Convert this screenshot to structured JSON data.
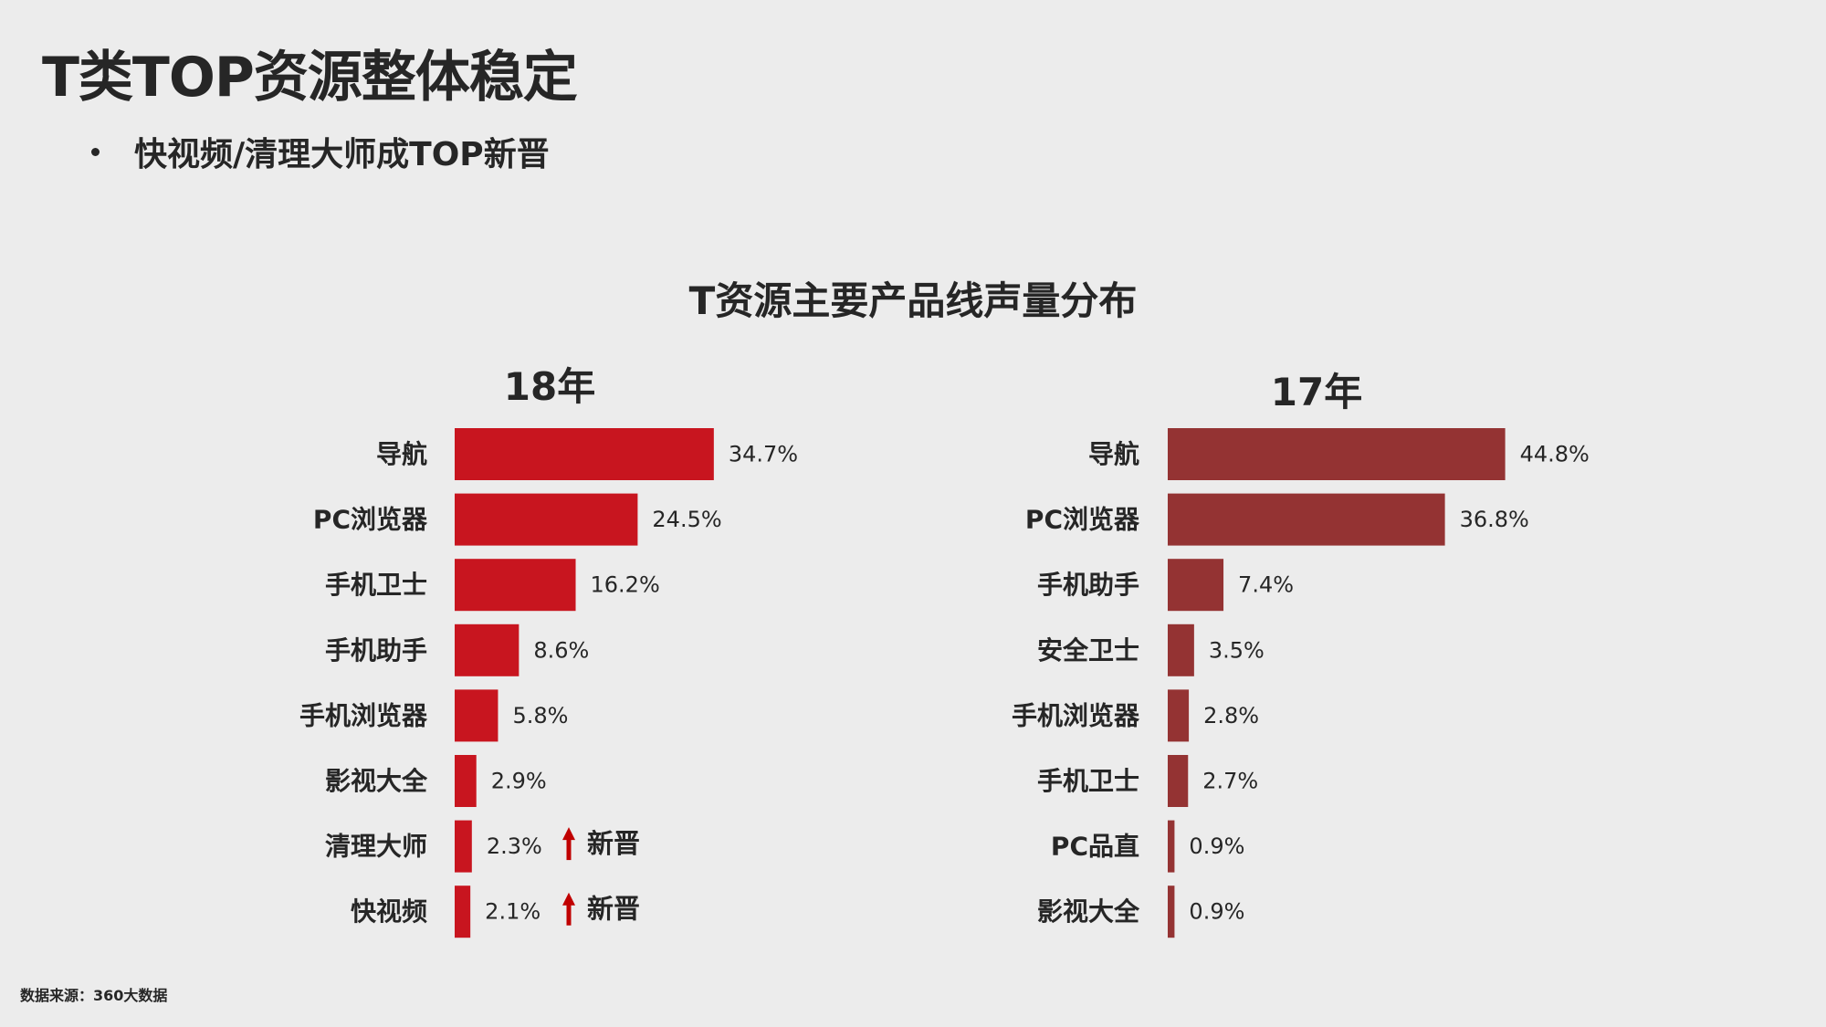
{
  "page": {
    "title": "T类TOP资源整体稳定",
    "bullet": "快视频/清理大师成TOP新晋",
    "footnote": "数据来源：360大数据"
  },
  "colors": {
    "background": "#ececec",
    "text": "#262626",
    "bar_18": "#c8151f",
    "bar_17": "#943333",
    "arrow": "#c00000"
  },
  "chart_data": [
    {
      "type": "bar",
      "orientation": "horizontal",
      "title": "T资源主要产品线声量分布",
      "subtitle": "18年",
      "categories": [
        "导航",
        "PC浏览器",
        "手机卫士",
        "手机助手",
        "手机浏览器",
        "影视大全",
        "清理大师",
        "快视频"
      ],
      "values": [
        34.7,
        24.5,
        16.2,
        8.6,
        5.8,
        2.9,
        2.3,
        2.1
      ],
      "value_labels": [
        "34.7%",
        "24.5%",
        "16.2%",
        "8.6%",
        "5.8%",
        "2.9%",
        "2.3%",
        "2.1%"
      ],
      "annotations": [
        {
          "category": "清理大师",
          "text": "新晋",
          "icon": "up-arrow-icon"
        },
        {
          "category": "快视频",
          "text": "新晋",
          "icon": "up-arrow-icon"
        }
      ],
      "unit": "%",
      "color": "#c8151f",
      "grid": false,
      "legend": "none"
    },
    {
      "type": "bar",
      "orientation": "horizontal",
      "title": "T资源主要产品线声量分布",
      "subtitle": "17年",
      "categories": [
        "导航",
        "PC浏览器",
        "手机助手",
        "安全卫士",
        "手机浏览器",
        "手机卫士",
        "PC品直",
        "影视大全"
      ],
      "values": [
        44.8,
        36.8,
        7.4,
        3.5,
        2.8,
        2.7,
        0.9,
        0.9
      ],
      "value_labels": [
        "44.8%",
        "36.8%",
        "7.4%",
        "3.5%",
        "2.8%",
        "2.7%",
        "0.9%",
        "0.9%"
      ],
      "unit": "%",
      "color": "#943333",
      "grid": false,
      "legend": "none"
    }
  ]
}
